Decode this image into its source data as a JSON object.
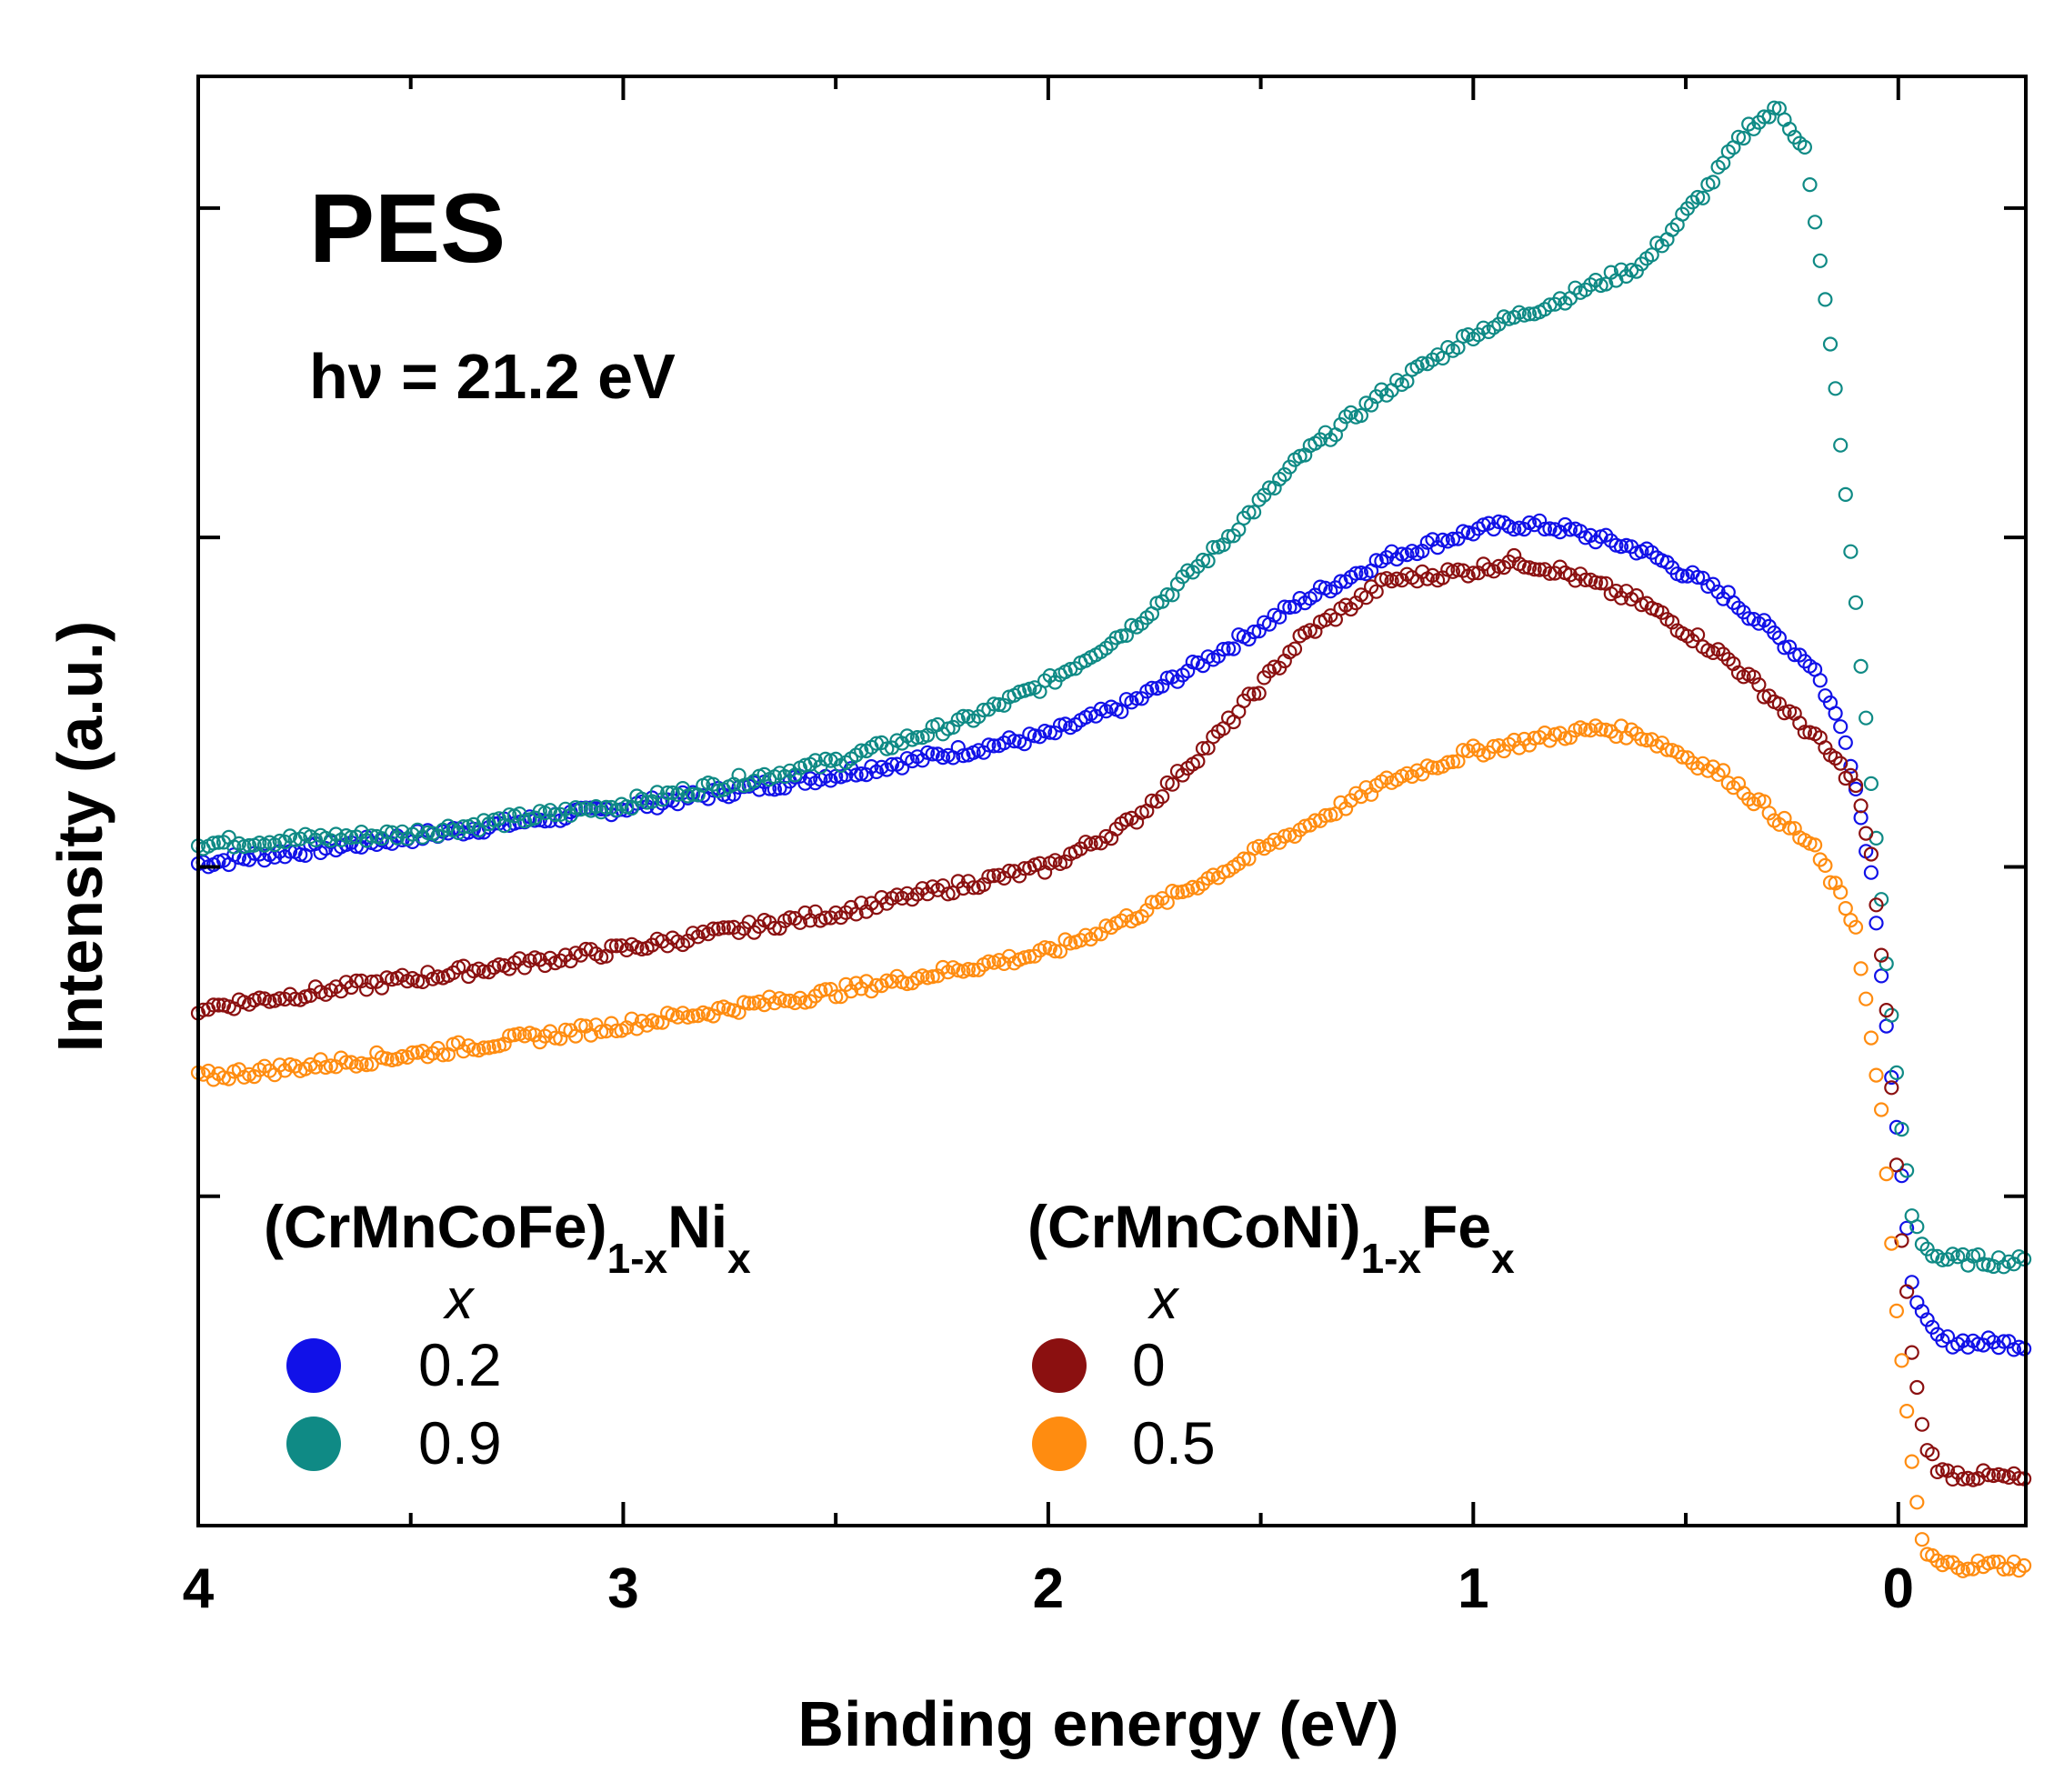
{
  "chart_data": {
    "type": "scatter",
    "title": "PES",
    "subtitle": "hν = 21.2 eV",
    "xlabel": "Binding energy (eV)",
    "ylabel": "Intensity (a.u.)",
    "xlim": [
      4,
      -0.3
    ],
    "ylim": [
      0,
      4.4
    ],
    "x_reversed": true,
    "x_ticks": [
      4,
      3,
      2,
      1,
      0
    ],
    "x_tick_labels": [
      "4",
      "3",
      "2",
      "1",
      "0"
    ],
    "y_ticks": [
      0,
      1,
      2,
      3,
      4
    ],
    "grid": false,
    "legend_groups": [
      {
        "title_main": "(CrMnCoFe)",
        "title_sub": "1-x",
        "title_end": "Ni",
        "title_end_sub": "x",
        "var_label": "x",
        "entries": [
          {
            "label": "0.2",
            "color": "#1111e8"
          },
          {
            "label": "0.9",
            "color": "#0f8a85"
          }
        ]
      },
      {
        "title_main": "(CrMnCoNi)",
        "title_sub": "1-x",
        "title_end": "Fe",
        "title_end_sub": "x",
        "var_label": "x",
        "entries": [
          {
            "label": "0",
            "color": "#8b1010"
          },
          {
            "label": "0.5",
            "color": "#ff8c10"
          }
        ]
      }
    ],
    "series": [
      {
        "name": "(CrMnCoFe)1-xNix x=0.2",
        "color": "#1111e8",
        "x": [
          4.0,
          3.5,
          3.0,
          2.5,
          2.0,
          1.8,
          1.6,
          1.4,
          1.2,
          1.0,
          0.9,
          0.8,
          0.6,
          0.4,
          0.2,
          0.12,
          0.06,
          0.0,
          -0.03,
          -0.06,
          -0.1,
          -0.3
        ],
        "y": [
          2.01,
          2.09,
          2.18,
          2.28,
          2.4,
          2.5,
          2.65,
          2.81,
          2.94,
          3.02,
          3.04,
          3.03,
          2.96,
          2.82,
          2.61,
          2.38,
          1.95,
          1.15,
          0.76,
          0.62,
          0.56,
          0.55
        ]
      },
      {
        "name": "(CrMnCoFe)1-xNix x=0.9",
        "color": "#0f8a85",
        "x": [
          4.0,
          3.5,
          3.0,
          2.5,
          2.2,
          2.0,
          1.8,
          1.6,
          1.4,
          1.2,
          1.0,
          0.8,
          0.6,
          0.45,
          0.35,
          0.28,
          0.22,
          0.16,
          0.1,
          0.04,
          0.0,
          -0.03,
          -0.06,
          -0.1,
          -0.3
        ],
        "y": [
          2.07,
          2.1,
          2.19,
          2.32,
          2.44,
          2.56,
          2.73,
          2.97,
          3.25,
          3.45,
          3.62,
          3.72,
          3.83,
          4.06,
          4.25,
          4.3,
          4.18,
          3.6,
          2.8,
          1.9,
          1.3,
          0.95,
          0.85,
          0.81,
          0.8
        ]
      },
      {
        "name": "(CrMnCoNi)1-xFex x=0",
        "color": "#8b1010",
        "x": [
          4.0,
          3.5,
          3.0,
          2.5,
          2.0,
          1.8,
          1.6,
          1.4,
          1.2,
          1.0,
          0.9,
          0.8,
          0.6,
          0.4,
          0.2,
          0.1,
          0.06,
          0.03,
          0.0,
          -0.03,
          -0.06,
          -0.1,
          -0.3
        ],
        "y": [
          1.57,
          1.66,
          1.75,
          1.86,
          2.0,
          2.14,
          2.4,
          2.7,
          2.87,
          2.9,
          2.93,
          2.9,
          2.8,
          2.63,
          2.4,
          2.25,
          2.0,
          1.6,
          1.0,
          0.55,
          0.26,
          0.16,
          0.14
        ]
      },
      {
        "name": "(CrMnCoNi)1-xFex x=0.5",
        "color": "#ff8c10",
        "x": [
          4.0,
          3.5,
          3.0,
          2.5,
          2.0,
          1.8,
          1.6,
          1.4,
          1.2,
          1.0,
          0.8,
          0.7,
          0.6,
          0.4,
          0.2,
          0.1,
          0.04,
          0.0,
          -0.03,
          -0.06,
          -0.1,
          -0.3
        ],
        "y": [
          1.36,
          1.43,
          1.52,
          1.62,
          1.74,
          1.85,
          1.98,
          2.12,
          2.26,
          2.35,
          2.4,
          2.42,
          2.4,
          2.27,
          2.06,
          1.82,
          1.25,
          0.6,
          0.2,
          -0.08,
          -0.12,
          -0.12
        ]
      }
    ]
  }
}
